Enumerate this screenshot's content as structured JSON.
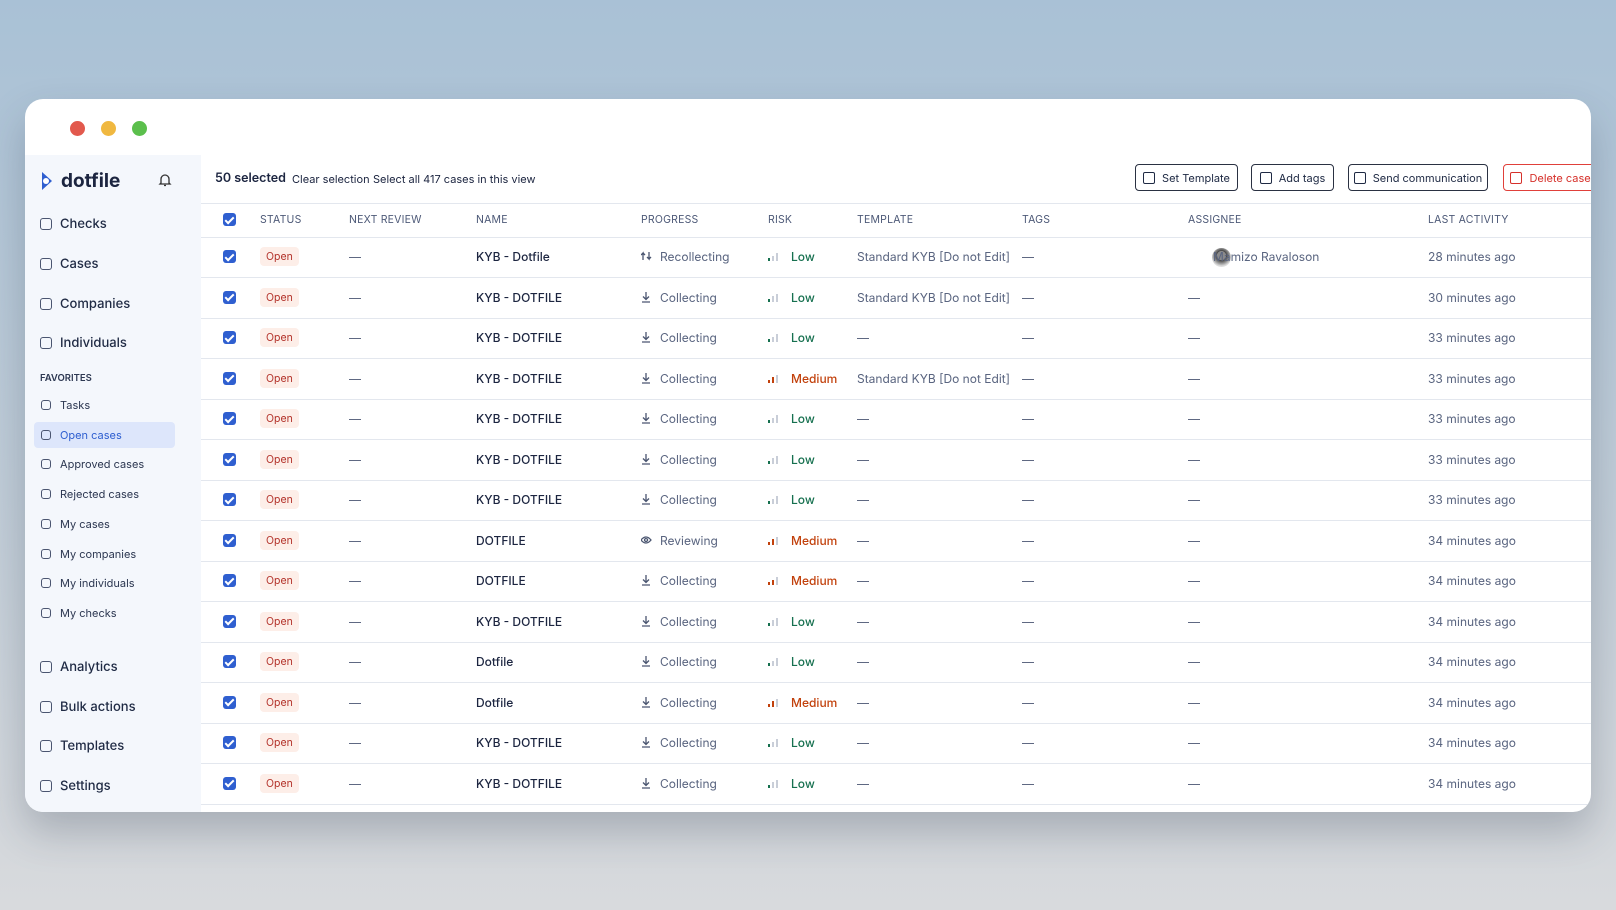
{
  "sidebar": {
    "brand": "dotfile",
    "nav": [
      "Checks",
      "Cases",
      "Companies",
      "Individuals"
    ],
    "favorites_label": "FAVORITES",
    "favorites": [
      "Tasks",
      "Open cases",
      "Approved cases",
      "Rejected cases",
      "My cases",
      "My companies",
      "My individuals",
      "My checks"
    ],
    "bottom_nav": [
      "Analytics",
      "Bulk actions",
      "Templates",
      "Settings"
    ]
  },
  "toolbar": {
    "selected": "50 selected",
    "clear": "Clear selection",
    "select_all": "Select all 417 cases in this view",
    "buttons": [
      "Set Template",
      "Add tags",
      "Send communication",
      "Delete cases"
    ]
  },
  "risk_levels": {
    "Low": {
      "color": "#16704f",
      "bars": 1
    },
    "Medium": {
      "color": "#c2410c",
      "bars": 2
    }
  },
  "table": {
    "columns": [
      "STATUS",
      "NEXT REVIEW",
      "NAME",
      "PROGRESS",
      "RISK",
      "TEMPLATE",
      "TAGS",
      "ASSIGNEE",
      "LAST ACTIVITY"
    ],
    "rows": [
      [
        "Open",
        "—",
        "KYB - Dotfile",
        "Recollecting",
        "Low",
        "Standard KYB [Do not Edit]",
        "—",
        "Mamizo Ravaloson",
        "28 minutes ago"
      ],
      [
        "Open",
        "—",
        "KYB - DOTFILE",
        "Collecting",
        "Low",
        "Standard KYB [Do not Edit]",
        "—",
        "—",
        "30 minutes ago"
      ],
      [
        "Open",
        "—",
        "KYB - DOTFILE",
        "Collecting",
        "Low",
        "—",
        "—",
        "—",
        "33 minutes ago"
      ],
      [
        "Open",
        "—",
        "KYB - DOTFILE",
        "Collecting",
        "Medium",
        "Standard KYB [Do not Edit]",
        "—",
        "—",
        "33 minutes ago"
      ],
      [
        "Open",
        "—",
        "KYB - DOTFILE",
        "Collecting",
        "Low",
        "—",
        "—",
        "—",
        "33 minutes ago"
      ],
      [
        "Open",
        "—",
        "KYB - DOTFILE",
        "Collecting",
        "Low",
        "—",
        "—",
        "—",
        "33 minutes ago"
      ],
      [
        "Open",
        "—",
        "KYB - DOTFILE",
        "Collecting",
        "Low",
        "—",
        "—",
        "—",
        "33 minutes ago"
      ],
      [
        "Open",
        "—",
        "DOTFILE",
        "Reviewing",
        "Medium",
        "—",
        "—",
        "—",
        "34 minutes ago"
      ],
      [
        "Open",
        "—",
        "DOTFILE",
        "Collecting",
        "Medium",
        "—",
        "—",
        "—",
        "34 minutes ago"
      ],
      [
        "Open",
        "—",
        "KYB - DOTFILE",
        "Collecting",
        "Low",
        "—",
        "—",
        "—",
        "34 minutes ago"
      ],
      [
        "Open",
        "—",
        "Dotfile",
        "Collecting",
        "Low",
        "—",
        "—",
        "—",
        "34 minutes ago"
      ],
      [
        "Open",
        "—",
        "Dotfile",
        "Collecting",
        "Medium",
        "—",
        "—",
        "—",
        "34 minutes ago"
      ],
      [
        "Open",
        "—",
        "KYB - DOTFILE",
        "Collecting",
        "Low",
        "—",
        "—",
        "—",
        "34 minutes ago"
      ],
      [
        "Open",
        "—",
        "KYB - DOTFILE",
        "Collecting",
        "Low",
        "—",
        "—",
        "—",
        "34 minutes ago"
      ]
    ]
  }
}
